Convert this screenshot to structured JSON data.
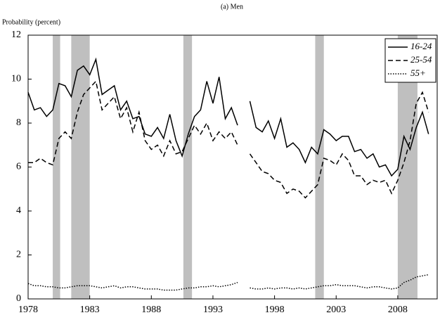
{
  "chart_data": {
    "type": "line",
    "title": "(a) Men",
    "y_label": "Probability (percent)",
    "x": [
      1978,
      1978.5,
      1979,
      1979.5,
      1980,
      1980.5,
      1981,
      1981.5,
      1982,
      1982.5,
      1983,
      1983.5,
      1984,
      1984.5,
      1985,
      1985.5,
      1986,
      1986.5,
      1987,
      1987.5,
      1988,
      1988.5,
      1989,
      1989.5,
      1990,
      1990.5,
      1991,
      1991.5,
      1992,
      1992.5,
      1993,
      1993.5,
      1994,
      1994.5,
      1995,
      1995.5,
      1996,
      1996.5,
      1997,
      1997.5,
      1998,
      1998.5,
      1999,
      1999.5,
      2000,
      2000.5,
      2001,
      2001.5,
      2002,
      2002.5,
      2003,
      2003.5,
      2004,
      2004.5,
      2005,
      2005.5,
      2006,
      2006.5,
      2007,
      2007.5,
      2008,
      2008.5,
      2009,
      2009.5,
      2010,
      2010.5
    ],
    "series": [
      {
        "name": "16-24",
        "color": "#000000",
        "dash": "solid",
        "values": [
          9.4,
          8.6,
          8.7,
          8.3,
          8.6,
          9.8,
          9.7,
          9.2,
          10.4,
          10.6,
          10.2,
          10.9,
          9.3,
          9.5,
          9.7,
          8.6,
          9.0,
          8.2,
          8.3,
          7.5,
          7.4,
          7.8,
          7.3,
          8.4,
          7.2,
          6.5,
          7.5,
          8.3,
          8.6,
          9.9,
          8.9,
          10.1,
          8.2,
          8.7,
          7.9,
          null,
          9.0,
          7.8,
          7.6,
          8.1,
          7.3,
          8.2,
          6.9,
          7.1,
          6.8,
          6.2,
          6.9,
          6.6,
          7.7,
          7.5,
          7.2,
          7.4,
          7.4,
          6.7,
          6.8,
          6.4,
          6.6,
          6.0,
          6.1,
          5.6,
          5.9,
          7.4,
          6.8,
          7.8,
          8.5,
          7.5
        ]
      },
      {
        "name": "25-54",
        "color": "#000000",
        "dash": "dashed",
        "values": [
          6.2,
          6.2,
          6.4,
          6.2,
          6.1,
          7.3,
          7.6,
          7.3,
          8.5,
          9.3,
          9.6,
          9.9,
          8.6,
          8.9,
          9.2,
          8.2,
          8.7,
          7.6,
          8.5,
          7.2,
          6.8,
          7.0,
          6.5,
          7.2,
          6.6,
          6.7,
          7.3,
          7.9,
          7.5,
          8.0,
          7.2,
          7.6,
          7.3,
          7.6,
          7.0,
          null,
          6.6,
          6.2,
          5.8,
          5.7,
          5.4,
          5.3,
          4.8,
          5.0,
          4.9,
          4.6,
          4.9,
          5.2,
          6.4,
          6.3,
          6.1,
          6.6,
          6.3,
          5.6,
          5.6,
          5.2,
          5.4,
          5.3,
          5.4,
          4.8,
          5.4,
          6.2,
          7.2,
          8.9,
          9.4,
          8.5
        ]
      },
      {
        "name": "55+",
        "color": "#000000",
        "dash": "dotted",
        "values": [
          0.7,
          0.6,
          0.6,
          0.55,
          0.55,
          0.5,
          0.5,
          0.55,
          0.6,
          0.6,
          0.6,
          0.55,
          0.5,
          0.55,
          0.6,
          0.5,
          0.55,
          0.55,
          0.5,
          0.45,
          0.45,
          0.45,
          0.4,
          0.4,
          0.4,
          0.45,
          0.5,
          0.5,
          0.55,
          0.55,
          0.6,
          0.55,
          0.6,
          0.65,
          0.75,
          null,
          0.5,
          0.45,
          0.45,
          0.5,
          0.45,
          0.5,
          0.5,
          0.45,
          0.5,
          0.45,
          0.5,
          0.55,
          0.6,
          0.6,
          0.65,
          0.6,
          0.6,
          0.6,
          0.55,
          0.5,
          0.55,
          0.55,
          0.5,
          0.45,
          0.5,
          0.75,
          0.85,
          1.0,
          1.05,
          1.1
        ]
      }
    ],
    "shaded_ranges": [
      [
        1980,
        1980.6
      ],
      [
        1981.5,
        1983
      ],
      [
        1990.6,
        1991.3
      ],
      [
        2001.3,
        2002
      ],
      [
        2008,
        2009.6
      ]
    ],
    "shade_color": "#bfbfbf",
    "xlim": [
      1978,
      2011.2
    ],
    "xticks": [
      1978,
      1983,
      1988,
      1993,
      1998,
      2003,
      2008
    ],
    "ylim": [
      0,
      12
    ],
    "yticks": [
      0,
      2,
      4,
      6,
      8,
      10,
      12
    ],
    "legend": "top-right"
  }
}
